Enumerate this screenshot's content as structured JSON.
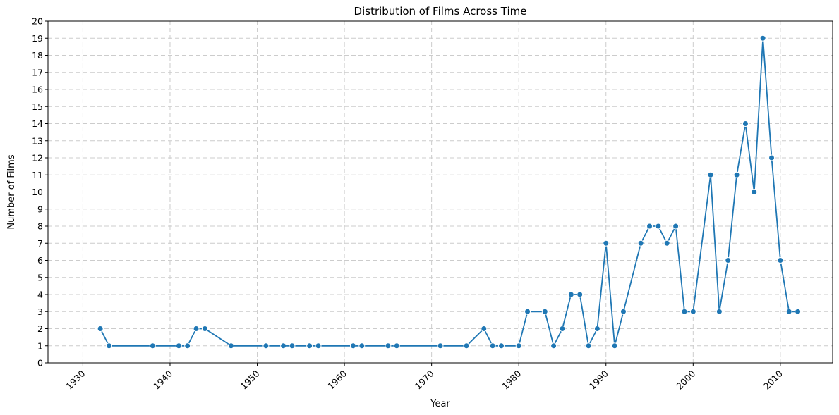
{
  "chart_data": {
    "type": "line",
    "title": "Distribution of Films Across Time",
    "xlabel": "Year",
    "ylabel": "Number of Films",
    "xlim": [
      1926,
      2016
    ],
    "ylim": [
      0,
      20
    ],
    "x_ticks": [
      1930,
      1940,
      1950,
      1960,
      1970,
      1980,
      1990,
      2000,
      2010
    ],
    "y_ticks": [
      0,
      1,
      2,
      3,
      4,
      5,
      6,
      7,
      8,
      9,
      10,
      11,
      12,
      13,
      14,
      15,
      16,
      17,
      18,
      19,
      20
    ],
    "grid": true,
    "series": [
      {
        "color": "#1f77b4",
        "x": [
          1932,
          1933,
          1938,
          1941,
          1942,
          1943,
          1944,
          1947,
          1951,
          1953,
          1954,
          1956,
          1957,
          1961,
          1962,
          1965,
          1966,
          1971,
          1974,
          1976,
          1977,
          1978,
          1980,
          1981,
          1983,
          1984,
          1985,
          1986,
          1987,
          1988,
          1989,
          1990,
          1991,
          1992,
          1994,
          1995,
          1996,
          1997,
          1998,
          1999,
          2000,
          2002,
          2003,
          2004,
          2005,
          2006,
          2007,
          2008,
          2009,
          2010,
          2011,
          2012
        ],
        "values": [
          2,
          1,
          1,
          1,
          1,
          2,
          2,
          1,
          1,
          1,
          1,
          1,
          1,
          1,
          1,
          1,
          1,
          1,
          1,
          2,
          1,
          1,
          1,
          3,
          3,
          1,
          2,
          4,
          4,
          1,
          2,
          7,
          1,
          3,
          7,
          8,
          8,
          7,
          8,
          3,
          3,
          11,
          3,
          6,
          11,
          14,
          10,
          19,
          12,
          6,
          3,
          3
        ]
      }
    ]
  }
}
